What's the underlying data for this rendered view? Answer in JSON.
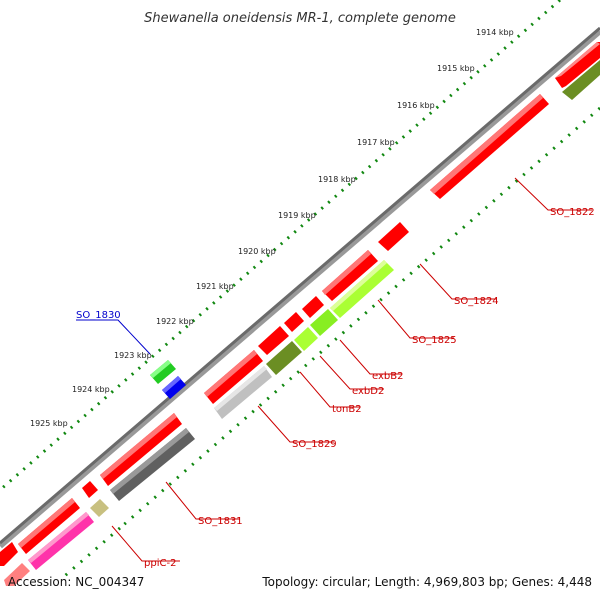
{
  "title": "Shewanella oneidensis MR-1, complete genome",
  "footer": {
    "accession": "Accession: NC_004347",
    "summary": "Topology: circular; Length: 4,969,803 bp; Genes: 4,448"
  },
  "scale_labels": [
    "1914 kbp",
    "1915 kbp",
    "1916 kbp",
    "1917 kbp",
    "1918 kbp",
    "1919 kbp",
    "1920 kbp",
    "1921 kbp",
    "1922 kbp",
    "1923 kbp",
    "1924 kbp",
    "1925 kbp"
  ],
  "gene_labels": [
    "SO_1822",
    "SO_1824",
    "SO_1825",
    "exbB2",
    "exbD2",
    "tonB2",
    "SO_1829",
    "SO_1830",
    "SO_1831",
    "ppiC-2"
  ],
  "colors": {
    "forward_cds": "#ff0000",
    "reverse_other": "#707070",
    "exbB2": "#aaff33",
    "exbD2": "#88ee22",
    "tonB2": "#6b8e23",
    "SO_1829": "#c0c0c0",
    "SO_1830_fwd": "#22cc22",
    "SO_1830_rev": "#0000ee",
    "SO_1831": "#606060",
    "ppiC-2": "#c8c080",
    "magenta_gene": "#ff33aa",
    "olive_gene": "#6b8e23",
    "label_red": "#cc0000",
    "label_blue": "#0000cc"
  }
}
